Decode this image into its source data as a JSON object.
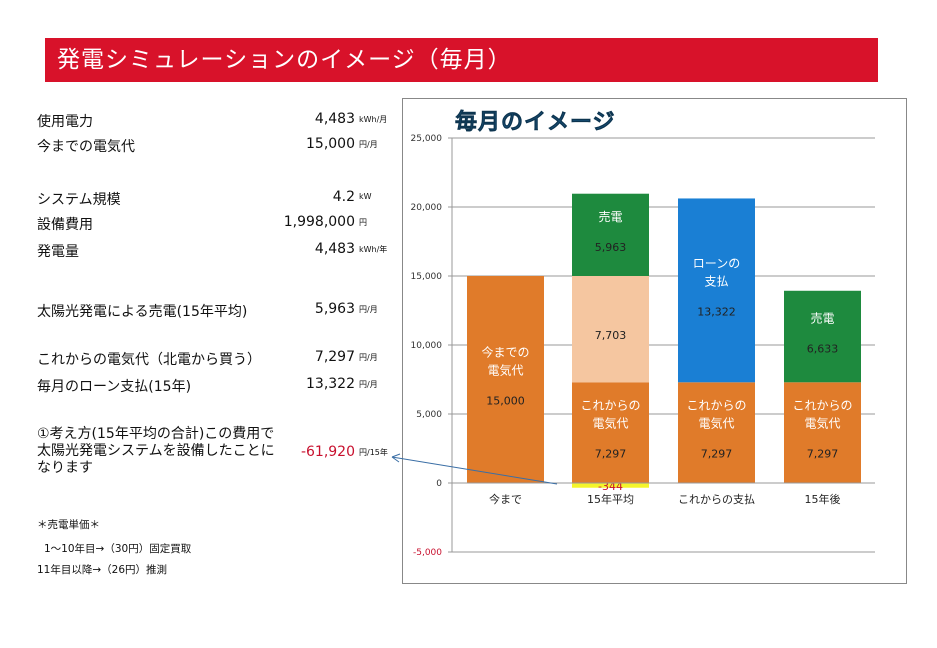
{
  "banner": {
    "title": "発電シミュレーションのイメージ（毎月）"
  },
  "summary": [
    {
      "label": "使用電力",
      "value": "4,483",
      "unit": "kWh/月"
    },
    {
      "label": "今までの電気代",
      "value": "15,000",
      "unit": "円/月"
    },
    {
      "label": "システム規模",
      "value": "4.2",
      "unit": "kW"
    },
    {
      "label": "設備費用",
      "value": "1,998,000",
      "unit": "円"
    },
    {
      "label": "発電量",
      "value": "4,483",
      "unit": "kWh/年"
    },
    {
      "label": "太陽光発電による売電(15年平均)",
      "value": "5,963",
      "unit": "円/月"
    },
    {
      "label": "これからの電気代（北電から買う）",
      "value": "7,297",
      "unit": "円/月"
    },
    {
      "label": "毎月のローン支払(15年)",
      "value": "13,322",
      "unit": "円/月"
    }
  ],
  "conclusion": {
    "text": "①考え方(15年平均の合計)この費用で太陽光発電システムを設備したことになります",
    "value": "-61,920",
    "unit": "円/15年"
  },
  "notes": {
    "title": "＊売電単価＊",
    "line1": "1～10年目→（30円）固定買取",
    "line2": "11年目以降→（26円）推測"
  },
  "colors": {
    "banner": "#d8122a",
    "electricity": "#e07b2a",
    "sell": "#1e8a3e",
    "loan": "#1a7fd4",
    "diff": "#f5c6a0",
    "negative": "#f5f52a",
    "negative_text": "#c8102e"
  },
  "chart_data": {
    "type": "bar",
    "stacked": true,
    "title": "毎月のイメージ",
    "categories": [
      "今まで",
      "15年平均",
      "これからの支払",
      "15年後"
    ],
    "ylim": [
      -5000,
      25000
    ],
    "yticks": [
      "-5,000",
      "0",
      "5,000",
      "10,000",
      "15,000",
      "20,000",
      "25,000"
    ],
    "ytick_values": [
      -5000,
      0,
      5000,
      10000,
      15000,
      20000,
      25000
    ],
    "grid": true,
    "bars": [
      {
        "segments": [
          {
            "value": 15000,
            "label": "今までの電気代",
            "value_label": "15,000",
            "color": "#e07b2a"
          }
        ]
      },
      {
        "segments": [
          {
            "value": -344,
            "label": "",
            "value_label": "-344",
            "color": "#f5f52a"
          },
          {
            "value": 7297,
            "label": "これからの電気代",
            "value_label": "7,297",
            "color": "#e07b2a"
          },
          {
            "value": 7703,
            "label": "",
            "value_label": "7,703",
            "color": "#f5c6a0"
          },
          {
            "value": 5963,
            "label": "売電",
            "value_label": "5,963",
            "color": "#1e8a3e"
          }
        ]
      },
      {
        "segments": [
          {
            "value": 7297,
            "label": "これからの電気代",
            "value_label": "7,297",
            "color": "#e07b2a"
          },
          {
            "value": 13322,
            "label": "ローンの支払",
            "value_label": "13,322",
            "color": "#1a7fd4"
          }
        ]
      },
      {
        "segments": [
          {
            "value": 7297,
            "label": "これからの電気代",
            "value_label": "7,297",
            "color": "#e07b2a"
          },
          {
            "value": 6633,
            "label": "売電",
            "value_label": "6,633",
            "color": "#1e8a3e"
          }
        ]
      }
    ]
  }
}
